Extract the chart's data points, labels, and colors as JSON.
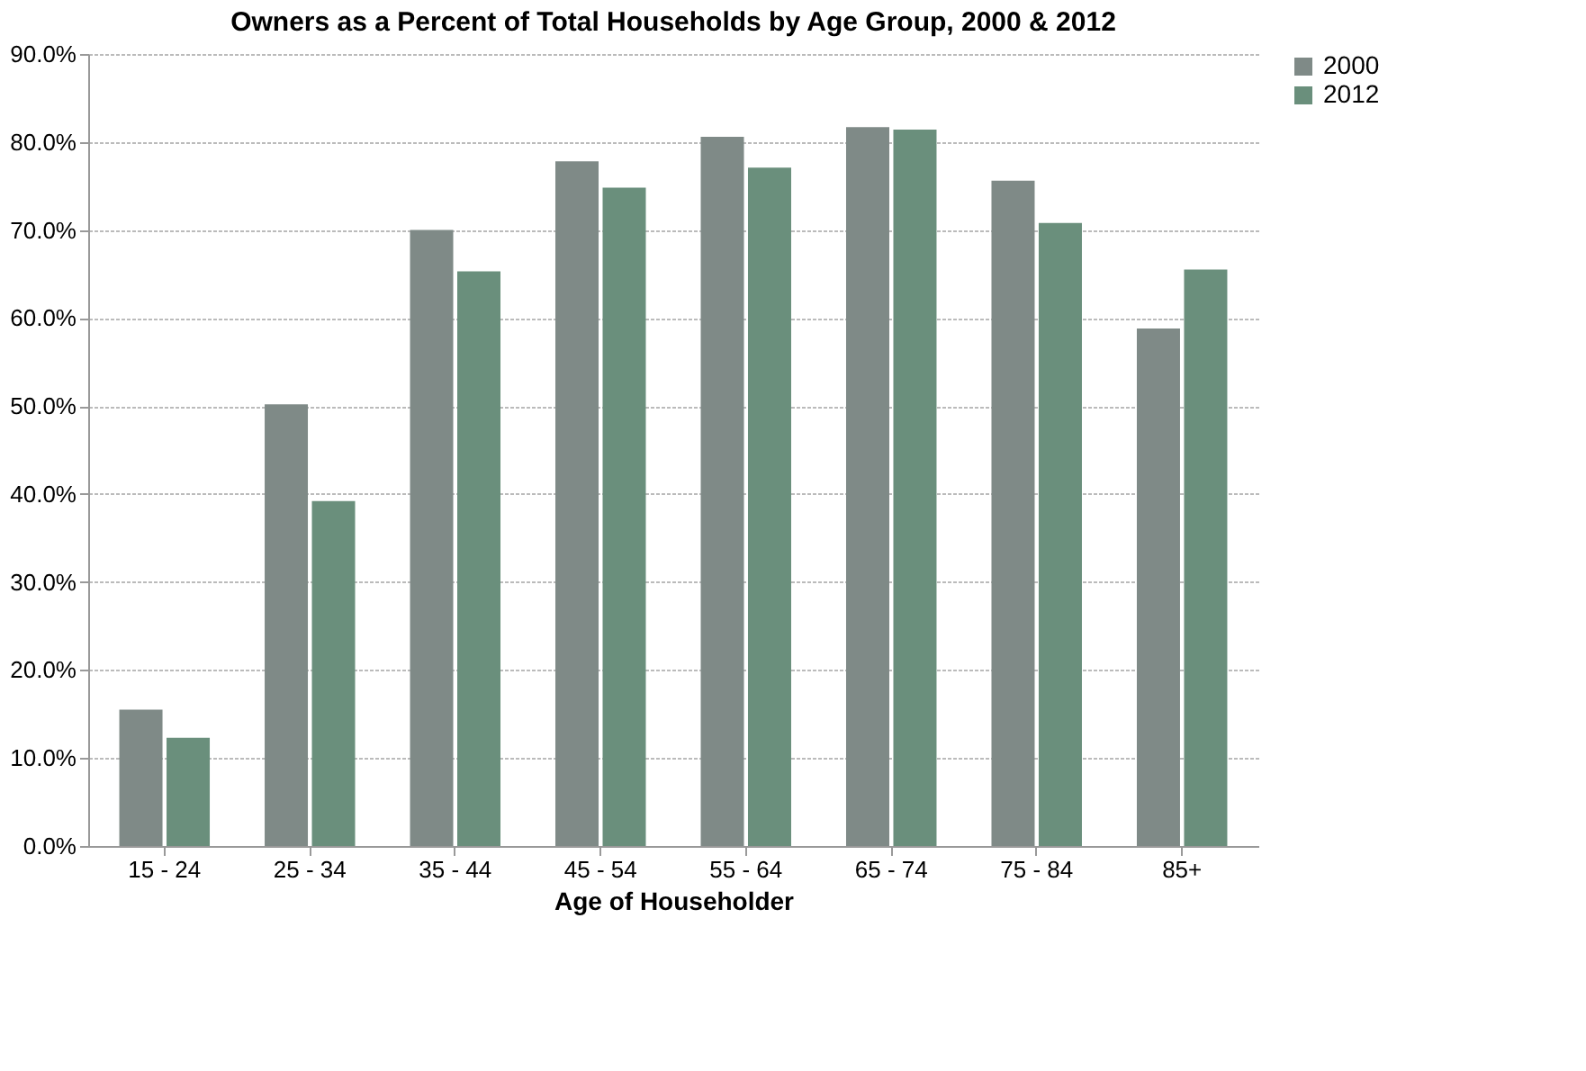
{
  "chart_data": {
    "type": "bar",
    "title": "Owners as a Percent of Total Households by Age Group, 2000 & 2012",
    "xlabel": "Age of Householder",
    "categories": [
      "15 - 24",
      "25 - 34",
      "35 - 44",
      "45 - 54",
      "55 - 64",
      "65 - 74",
      "75 - 84",
      "85+"
    ],
    "series": [
      {
        "name": "2000",
        "color": "#7f8a87",
        "values": [
          15.5,
          50.2,
          70.0,
          77.8,
          80.6,
          81.7,
          75.6,
          58.8
        ]
      },
      {
        "name": "2012",
        "color": "#6a8f7c",
        "values": [
          12.3,
          39.2,
          65.3,
          74.8,
          77.1,
          81.4,
          70.8,
          65.5
        ]
      }
    ],
    "ylim": [
      0,
      90
    ],
    "yticks": [
      {
        "value": 0,
        "label": "0.0%"
      },
      {
        "value": 10,
        "label": "10.0%"
      },
      {
        "value": 20,
        "label": "20.0%"
      },
      {
        "value": 30,
        "label": "30.0%"
      },
      {
        "value": 40,
        "label": "40.0%"
      },
      {
        "value": 50,
        "label": "50.0%"
      },
      {
        "value": 60,
        "label": "60.0%"
      },
      {
        "value": 70,
        "label": "70.0%"
      },
      {
        "value": 80,
        "label": "80.0%"
      },
      {
        "value": 90,
        "label": "90.0%"
      }
    ],
    "grid": "y",
    "legend": "right"
  }
}
